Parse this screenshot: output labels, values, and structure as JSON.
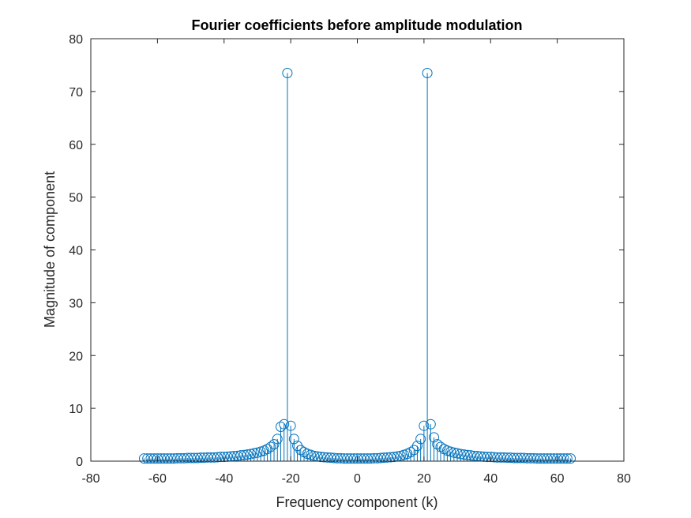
{
  "chart_data": {
    "type": "stem",
    "title": "Fourier coefficients before amplitude modulation",
    "xlabel": "Frequency component (k)",
    "ylabel": "Magnitude of component",
    "xlim": [
      -80,
      80
    ],
    "ylim": [
      0,
      80
    ],
    "xticks": [
      -80,
      -60,
      -40,
      -20,
      0,
      20,
      40,
      60,
      80
    ],
    "yticks": [
      0,
      10,
      20,
      30,
      40,
      50,
      60,
      70,
      80
    ],
    "grid": false,
    "series": [
      {
        "color": "#0072BD",
        "marker": "circle-open",
        "x": [
          -64,
          -63,
          -62,
          -61,
          -60,
          -59,
          -58,
          -57,
          -56,
          -55,
          -54,
          -53,
          -52,
          -51,
          -50,
          -49,
          -48,
          -47,
          -46,
          -45,
          -44,
          -43,
          -42,
          -41,
          -40,
          -39,
          -38,
          -37,
          -36,
          -35,
          -34,
          -33,
          -32,
          -31,
          -30,
          -29,
          -28,
          -27,
          -26,
          -25,
          -24,
          -23,
          -22,
          -21,
          -20,
          -19,
          -18,
          -17,
          -16,
          -15,
          -14,
          -13,
          -12,
          -11,
          -10,
          -9,
          -8,
          -7,
          -6,
          -5,
          -4,
          -3,
          -2,
          -1,
          0,
          1,
          2,
          3,
          4,
          5,
          6,
          7,
          8,
          9,
          10,
          11,
          12,
          13,
          14,
          15,
          16,
          17,
          18,
          19,
          20,
          21,
          22,
          23,
          24,
          25,
          26,
          27,
          28,
          29,
          30,
          31,
          32,
          33,
          34,
          35,
          36,
          37,
          38,
          39,
          40,
          41,
          42,
          43,
          44,
          45,
          46,
          47,
          48,
          49,
          50,
          51,
          52,
          53,
          54,
          55,
          56,
          57,
          58,
          59,
          60,
          61,
          62,
          63,
          64
        ],
        "y": [
          0.5,
          0.5,
          0.5,
          0.5,
          0.5,
          0.5,
          0.5,
          0.5,
          0.5,
          0.5,
          0.55,
          0.55,
          0.55,
          0.6,
          0.6,
          0.6,
          0.6,
          0.65,
          0.65,
          0.7,
          0.7,
          0.7,
          0.75,
          0.8,
          0.8,
          0.85,
          0.9,
          0.95,
          1.0,
          1.1,
          1.15,
          1.25,
          1.35,
          1.5,
          1.6,
          1.8,
          2.0,
          2.3,
          2.7,
          3.2,
          4.2,
          6.5,
          7.0,
          73.5,
          6.7,
          4.2,
          2.9,
          2.1,
          1.7,
          1.4,
          1.2,
          1.0,
          0.9,
          0.8,
          0.75,
          0.7,
          0.65,
          0.6,
          0.55,
          0.55,
          0.5,
          0.5,
          0.5,
          0.5,
          0.5,
          0.5,
          0.5,
          0.5,
          0.5,
          0.55,
          0.55,
          0.6,
          0.65,
          0.7,
          0.75,
          0.8,
          0.9,
          1.0,
          1.2,
          1.4,
          1.7,
          2.1,
          2.9,
          4.2,
          6.7,
          73.5,
          7.0,
          4.5,
          3.2,
          2.7,
          2.3,
          2.0,
          1.8,
          1.6,
          1.5,
          1.35,
          1.25,
          1.15,
          1.1,
          1.0,
          0.95,
          0.9,
          0.85,
          0.8,
          0.8,
          0.75,
          0.7,
          0.7,
          0.7,
          0.65,
          0.65,
          0.6,
          0.6,
          0.6,
          0.6,
          0.55,
          0.55,
          0.55,
          0.5,
          0.5,
          0.5,
          0.5,
          0.5,
          0.5,
          0.5,
          0.5,
          0.5,
          0.5,
          0.5
        ]
      }
    ]
  }
}
